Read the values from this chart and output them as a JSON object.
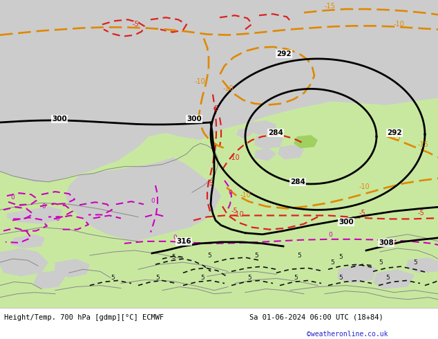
{
  "title_left": "Height/Temp. 700 hPa [gdmp][°C] ECMWF",
  "title_right": "Sa 01-06-2024 06:00 UTC (18+84)",
  "credit": "©weatheronline.co.uk",
  "land_green": "#c8e8a0",
  "land_gray": "#cccccc",
  "sea_gray": "#d0d0d0",
  "geo_color": "#000000",
  "red_color": "#dd2020",
  "mag_color": "#cc00bb",
  "ora_color": "#e08800",
  "coast_color": "#888888",
  "bottom_bg": "#ffffff",
  "text_color": "#000000",
  "credit_color": "#2222cc",
  "fig_width": 6.34,
  "fig_height": 4.9,
  "dpi": 100
}
